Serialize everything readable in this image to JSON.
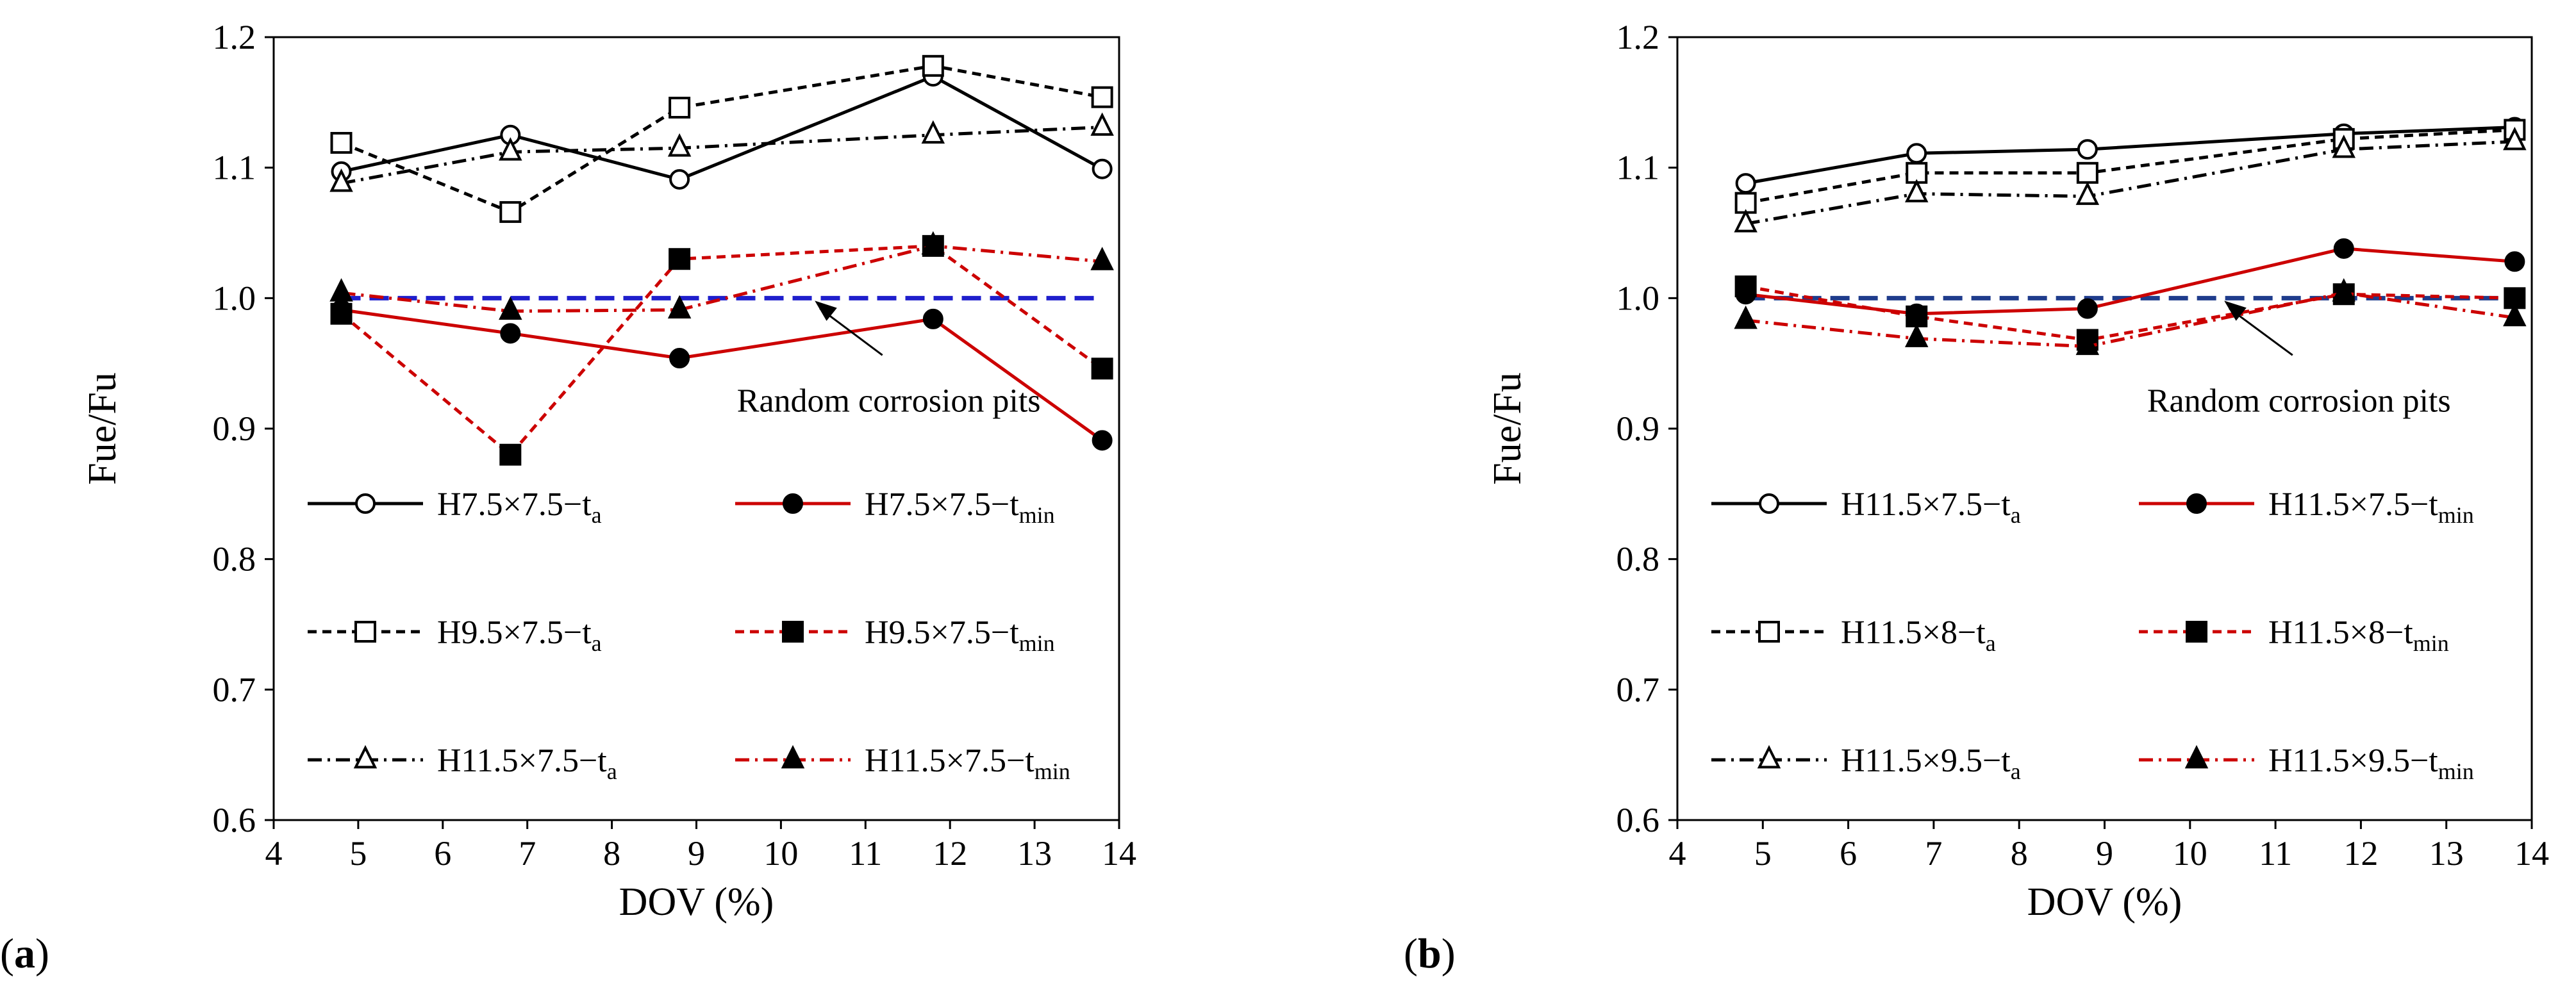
{
  "chart_data": [
    {
      "type": "line",
      "panel_label": "a",
      "xlabel": "DOV (%)",
      "ylabel": "Fue/Fu",
      "xlim": [
        4,
        14
      ],
      "ylim": [
        0.6,
        1.2
      ],
      "xticks": [
        "4",
        "5",
        "6",
        "7",
        "8",
        "9",
        "10",
        "11",
        "12",
        "13",
        "14"
      ],
      "yticks": [
        "0.6",
        "0.7",
        "0.8",
        "0.9",
        "1.0",
        "1.1",
        "1.2"
      ],
      "x": [
        4.8,
        6.8,
        8.8,
        11.8,
        13.8
      ],
      "reference_line": {
        "y": 1.0,
        "color": "#1f1fcc"
      },
      "annotation": {
        "text": "Random corrosion pits",
        "x": 11.2,
        "y": 0.918,
        "arrow_to": [
          10.4,
          0.998
        ]
      },
      "series": [
        {
          "name_main": "H7.5×7.5−t",
          "name_sub": "a",
          "values": [
            1.097,
            1.125,
            1.091,
            1.17,
            1.099
          ],
          "color": "#000000",
          "dash": "solid",
          "marker": "circle",
          "filled": false
        },
        {
          "name_main": "H7.5×7.5−t",
          "name_sub": "min",
          "values": [
            0.991,
            0.973,
            0.954,
            0.984,
            0.891
          ],
          "color": "#cc0000",
          "dash": "solid",
          "marker": "circle",
          "filled": true
        },
        {
          "name_main": "H9.5×7.5−t",
          "name_sub": "a",
          "values": [
            1.119,
            1.066,
            1.146,
            1.178,
            1.154
          ],
          "color": "#000000",
          "dash": "dash",
          "marker": "square",
          "filled": false
        },
        {
          "name_main": "H9.5×7.5−t",
          "name_sub": "min",
          "values": [
            0.988,
            0.88,
            1.03,
            1.04,
            0.946
          ],
          "color": "#cc0000",
          "dash": "dash",
          "marker": "square",
          "filled": true
        },
        {
          "name_main": "H11.5×7.5−t",
          "name_sub": "a",
          "values": [
            1.088,
            1.112,
            1.115,
            1.125,
            1.131
          ],
          "color": "#000000",
          "dash": "dashdot",
          "marker": "triangle",
          "filled": false
        },
        {
          "name_main": "H11.5×7.5−t",
          "name_sub": "min",
          "values": [
            1.004,
            0.99,
            0.991,
            1.04,
            1.028
          ],
          "color": "#cc0000",
          "dash": "dashdot",
          "marker": "triangle",
          "filled": true
        }
      ]
    },
    {
      "type": "line",
      "panel_label": "b",
      "xlabel": "DOV (%)",
      "ylabel": "Fue/Fu",
      "xlim": [
        4,
        14
      ],
      "ylim": [
        0.6,
        1.2
      ],
      "xticks": [
        "4",
        "5",
        "6",
        "7",
        "8",
        "9",
        "10",
        "11",
        "12",
        "13",
        "14"
      ],
      "yticks": [
        "0.6",
        "0.7",
        "0.8",
        "0.9",
        "1.0",
        "1.1",
        "1.2"
      ],
      "x": [
        4.8,
        6.8,
        8.8,
        11.8,
        13.8
      ],
      "reference_line": {
        "y": 1.0,
        "color": "#1f3c8c"
      },
      "annotation": {
        "text": "Random corrosion pits",
        "x": 11.2,
        "y": 0.918,
        "arrow_to": [
          10.4,
          0.998
        ]
      },
      "series": [
        {
          "name_main": "H11.5×7.5−t",
          "name_sub": "a",
          "values": [
            1.088,
            1.111,
            1.114,
            1.126,
            1.131
          ],
          "color": "#000000",
          "dash": "solid",
          "marker": "circle",
          "filled": false
        },
        {
          "name_main": "H11.5×7.5−t",
          "name_sub": "min",
          "values": [
            1.003,
            0.988,
            0.992,
            1.038,
            1.028
          ],
          "color": "#cc0000",
          "dash": "solid",
          "marker": "circle",
          "filled": true
        },
        {
          "name_main": "H11.5×8−t",
          "name_sub": "a",
          "values": [
            1.073,
            1.096,
            1.096,
            1.122,
            1.129
          ],
          "color": "#000000",
          "dash": "dash",
          "marker": "square",
          "filled": false
        },
        {
          "name_main": "H11.5×8−t",
          "name_sub": "min",
          "values": [
            1.009,
            0.986,
            0.968,
            1.003,
            1.0
          ],
          "color": "#cc0000",
          "dash": "dash",
          "marker": "square",
          "filled": true
        },
        {
          "name_main": "H11.5×9.5−t",
          "name_sub": "a",
          "values": [
            1.057,
            1.08,
            1.078,
            1.114,
            1.12
          ],
          "color": "#000000",
          "dash": "dashdot",
          "marker": "triangle",
          "filled": false
        },
        {
          "name_main": "H11.5×9.5−t",
          "name_sub": "min",
          "values": [
            0.983,
            0.969,
            0.963,
            1.004,
            0.985
          ],
          "color": "#cc0000",
          "dash": "dashdot",
          "marker": "triangle",
          "filled": true
        }
      ]
    }
  ]
}
